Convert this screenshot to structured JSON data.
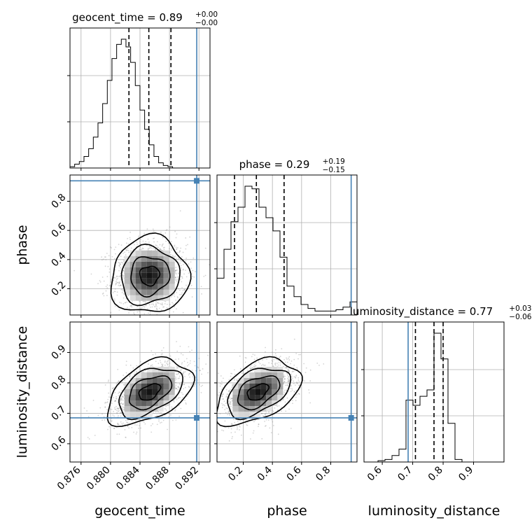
{
  "chart_data": {
    "type": "corner",
    "truth_color": "#4682b4",
    "parameters": [
      {
        "name": "geocent_time",
        "label": "geocent_time",
        "range": [
          0.8745,
          0.8935
        ],
        "ticks": [
          0.876,
          0.88,
          0.884,
          0.888,
          0.892
        ],
        "tick_labels": [
          "0.876",
          "0.880",
          "0.884",
          "0.888",
          "0.892"
        ],
        "title": {
          "prefix": "geocent_time = ",
          "value": "0.89",
          "plus": "+0.00",
          "minus": "−0.00"
        },
        "median": 0.8852,
        "q16": 0.8825,
        "q84": 0.8882,
        "truth": 0.8917,
        "hist_edges_start": 0.8745,
        "hist_bin_width": 0.000633,
        "hist_counts": [
          1,
          3,
          5,
          9,
          15,
          24,
          35,
          50,
          68,
          85,
          96,
          100,
          94,
          82,
          64,
          45,
          30,
          18,
          9,
          4,
          2,
          1,
          0,
          0,
          0,
          0,
          0,
          0,
          0,
          0
        ]
      },
      {
        "name": "phase",
        "label": "phase",
        "range": [
          0.02,
          0.98
        ],
        "ticks": [
          0.2,
          0.4,
          0.6,
          0.8
        ],
        "tick_labels": [
          "0.2",
          "0.4",
          "0.6",
          "0.8"
        ],
        "title": {
          "prefix": "phase = ",
          "value": "0.29",
          "plus": "+0.19",
          "minus": "−0.15"
        },
        "median": 0.29,
        "q16": 0.14,
        "q84": 0.48,
        "truth": 0.94,
        "hist_edges_start": 0.02,
        "hist_bin_width": 0.048,
        "hist_counts": [
          28,
          50,
          71,
          82,
          98,
          96,
          82,
          74,
          64,
          44,
          22,
          14,
          8,
          5,
          3,
          3,
          3,
          4,
          6,
          10
        ]
      },
      {
        "name": "luminosity_distance",
        "label": "luminosity_distance",
        "range": [
          0.54,
          1.0
        ],
        "ticks": [
          0.6,
          0.7,
          0.8,
          0.9
        ],
        "tick_labels": [
          "0.6",
          "0.7",
          "0.8",
          "0.9"
        ],
        "title": {
          "prefix": "luminosity_distance = ",
          "value": "0.77",
          "plus": "+0.03",
          "minus": "−0.06"
        },
        "median": 0.77,
        "q16": 0.709,
        "q84": 0.8,
        "truth": 0.685,
        "hist_edges_start": 0.54,
        "hist_bin_width": 0.023,
        "hist_counts": [
          0,
          0,
          1,
          2,
          5,
          10,
          48,
          44,
          51,
          56,
          100,
          80,
          30,
          2,
          0,
          0,
          0,
          0,
          0,
          0
        ]
      }
    ],
    "pairs": [
      {
        "x": "geocent_time",
        "y": "phase",
        "center": [
          0.8853,
          0.29
        ],
        "spread": [
          0.0022,
          0.11
        ],
        "rho": 0.05
      },
      {
        "x": "geocent_time",
        "y": "luminosity_distance",
        "center": [
          0.8853,
          0.77
        ],
        "spread": [
          0.0024,
          0.045
        ],
        "rho": 0.45
      },
      {
        "x": "phase",
        "y": "luminosity_distance",
        "center": [
          0.3,
          0.77
        ],
        "spread": [
          0.12,
          0.045
        ],
        "rho": 0.45
      }
    ]
  }
}
